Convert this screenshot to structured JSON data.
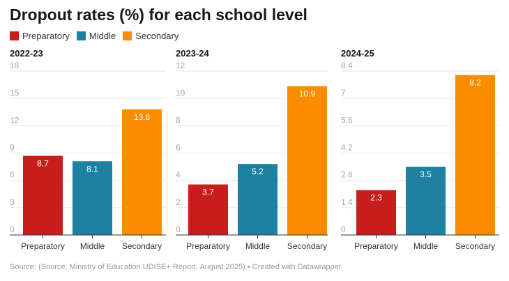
{
  "title": "Dropout rates (%) for each school level",
  "legend": [
    {
      "label": "Preparatory",
      "color": "#c71e1d"
    },
    {
      "label": "Middle",
      "color": "#1d81a2"
    },
    {
      "label": "Secondary",
      "color": "#fa8c00"
    }
  ],
  "source": "Source: (Source: Ministry of Education UDISE+ Report, August 2025) • Created with Datawrapper",
  "chart_data": [
    {
      "type": "bar",
      "title": "2022-23",
      "categories": [
        "Preparatory",
        "Middle",
        "Secondary"
      ],
      "values": [
        8.7,
        8.1,
        13.8
      ],
      "ylim": [
        0,
        18
      ],
      "yticks": [
        0,
        3,
        6,
        9,
        12,
        15,
        18
      ],
      "grid": true
    },
    {
      "type": "bar",
      "title": "2023-24",
      "categories": [
        "Preparatory",
        "Middle",
        "Secondary"
      ],
      "values": [
        3.7,
        5.2,
        10.9
      ],
      "ylim": [
        0,
        12
      ],
      "yticks": [
        0,
        2,
        4,
        6,
        8,
        10,
        12
      ],
      "grid": true
    },
    {
      "type": "bar",
      "title": "2024-25",
      "categories": [
        "Preparatory",
        "Middle",
        "Secondary"
      ],
      "values": [
        2.3,
        3.5,
        8.2
      ],
      "ylim": [
        0,
        8.4
      ],
      "yticks": [
        0,
        1.4,
        2.8,
        4.2,
        5.6,
        7,
        8.4
      ],
      "grid": true
    }
  ]
}
